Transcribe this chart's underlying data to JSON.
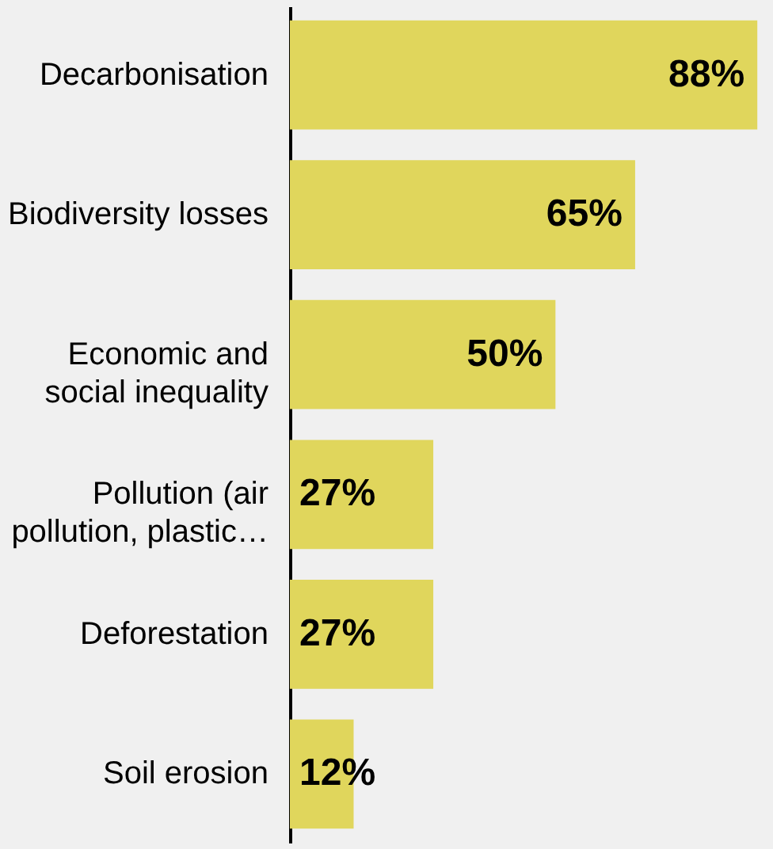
{
  "chart_data": {
    "type": "bar",
    "orientation": "horizontal",
    "categories": [
      "Decarbonisation",
      "Biodiversity losses",
      "Economic and social inequality",
      "Pollution (air pollution, plastic…",
      "Deforestation",
      "Soil erosion"
    ],
    "values": [
      88,
      65,
      50,
      27,
      27,
      12
    ],
    "color": "#e0d65c",
    "value_labels": [
      "88%",
      "65%",
      "50%",
      "27%",
      "27%",
      "12%"
    ],
    "grid": false
  }
}
